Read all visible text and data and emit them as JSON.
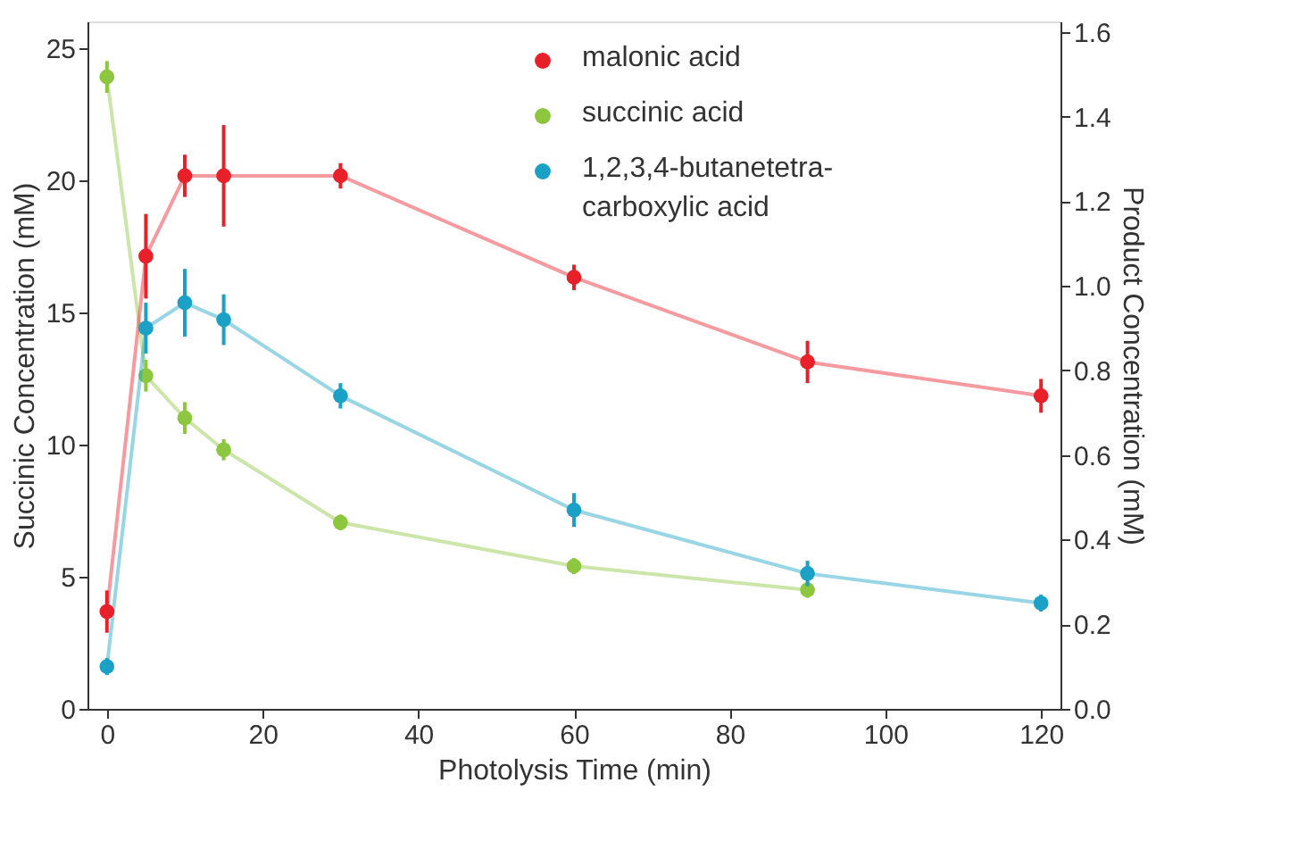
{
  "chart_data": {
    "type": "line",
    "xlabel": "Photolysis Time (min)",
    "ylabel": "Succinic Concentration (mM)",
    "y2label": "Product Concentration (mM)",
    "x": [
      0,
      5,
      10,
      15,
      30,
      60,
      90,
      120
    ],
    "xlim": [
      -2.5,
      122.5
    ],
    "xticks": [
      0,
      20,
      40,
      60,
      80,
      100,
      120
    ],
    "ylim": [
      0,
      26
    ],
    "yticks": [
      0,
      5,
      10,
      15,
      20,
      25
    ],
    "y2lim": [
      0,
      1.625
    ],
    "y2ticks": [
      {
        "value": 0,
        "label": "0.0"
      },
      0.2,
      0.4,
      0.6,
      0.8,
      {
        "value": 1,
        "label": "1.0"
      },
      1.2,
      1.4,
      1.6
    ],
    "marker": "circle",
    "line_style": "solid",
    "grid": false,
    "legend": "top right",
    "series": [
      {
        "name": "malonic acid",
        "color": "#e8202a",
        "axis": "y2",
        "values": [
          0.23,
          1.07,
          1.26,
          1.26,
          1.26,
          1.02,
          0.82,
          0.74
        ],
        "errors": [
          0.05,
          0.1,
          0.05,
          0.12,
          0.03,
          0.03,
          0.05,
          0.04
        ]
      },
      {
        "name": "succinic acid",
        "color": "#8dc63f",
        "axis": "y",
        "values": [
          23.9,
          12.6,
          11.0,
          9.8,
          7.05,
          5.4,
          4.5,
          null
        ],
        "errors": [
          0.6,
          0.6,
          0.6,
          0.4,
          0.3,
          0.3,
          0.3,
          null
        ]
      },
      {
        "name": "1,2,3,4-butanetetra-\ncarboxylic acid",
        "color": "#1ba1c6",
        "axis": "y2",
        "values": [
          0.1,
          0.9,
          0.96,
          0.92,
          0.74,
          0.47,
          0.32,
          0.25
        ],
        "errors": [
          0.02,
          0.06,
          0.08,
          0.06,
          0.03,
          0.04,
          0.03,
          0.02
        ]
      }
    ]
  }
}
